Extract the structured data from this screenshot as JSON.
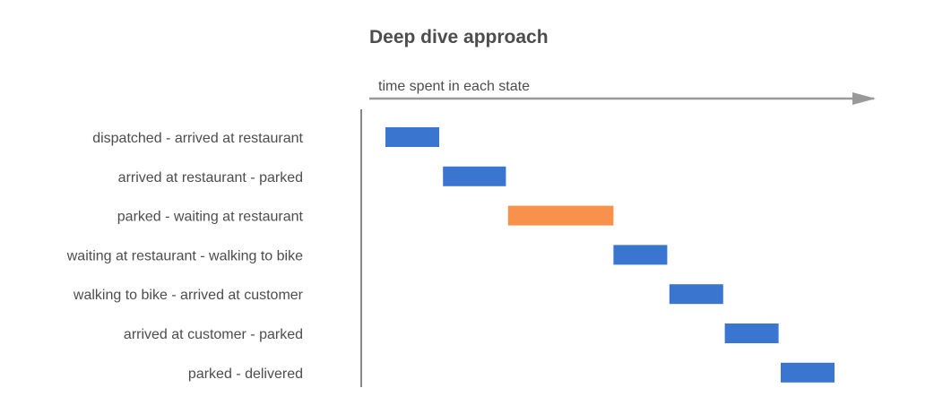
{
  "chart_data": {
    "type": "bar",
    "title": "Deep dive approach",
    "axis_label": "time spent in each state",
    "categories": [
      "dispatched - arrived at restaurant",
      "arrived at restaurant - parked",
      "parked - waiting at restaurant",
      "waiting at restaurant - walking to bike",
      "walking to bike - arrived at customer",
      "arrived at customer - parked",
      "parked - delivered"
    ],
    "series": [
      {
        "segments": [
          {
            "start": 0.0,
            "end": 1.0
          },
          {
            "start": 1.07,
            "end": 2.24
          },
          {
            "start": 2.28,
            "end": 4.24
          },
          {
            "start": 4.24,
            "end": 5.24
          },
          {
            "start": 5.28,
            "end": 6.28
          },
          {
            "start": 6.31,
            "end": 7.31
          },
          {
            "start": 7.35,
            "end": 8.35
          }
        ],
        "colors": [
          "#3a76cf",
          "#3a76cf",
          "#f7914c",
          "#3a76cf",
          "#3a76cf",
          "#3a76cf",
          "#3a76cf"
        ]
      }
    ],
    "xlim": [
      0,
      9.5
    ],
    "grid": false,
    "legend": "none",
    "highlight_color": "#f7914c",
    "bar_color": "#3a76cf",
    "axis_color": "#888888",
    "label_color": "#4d4d4d"
  }
}
